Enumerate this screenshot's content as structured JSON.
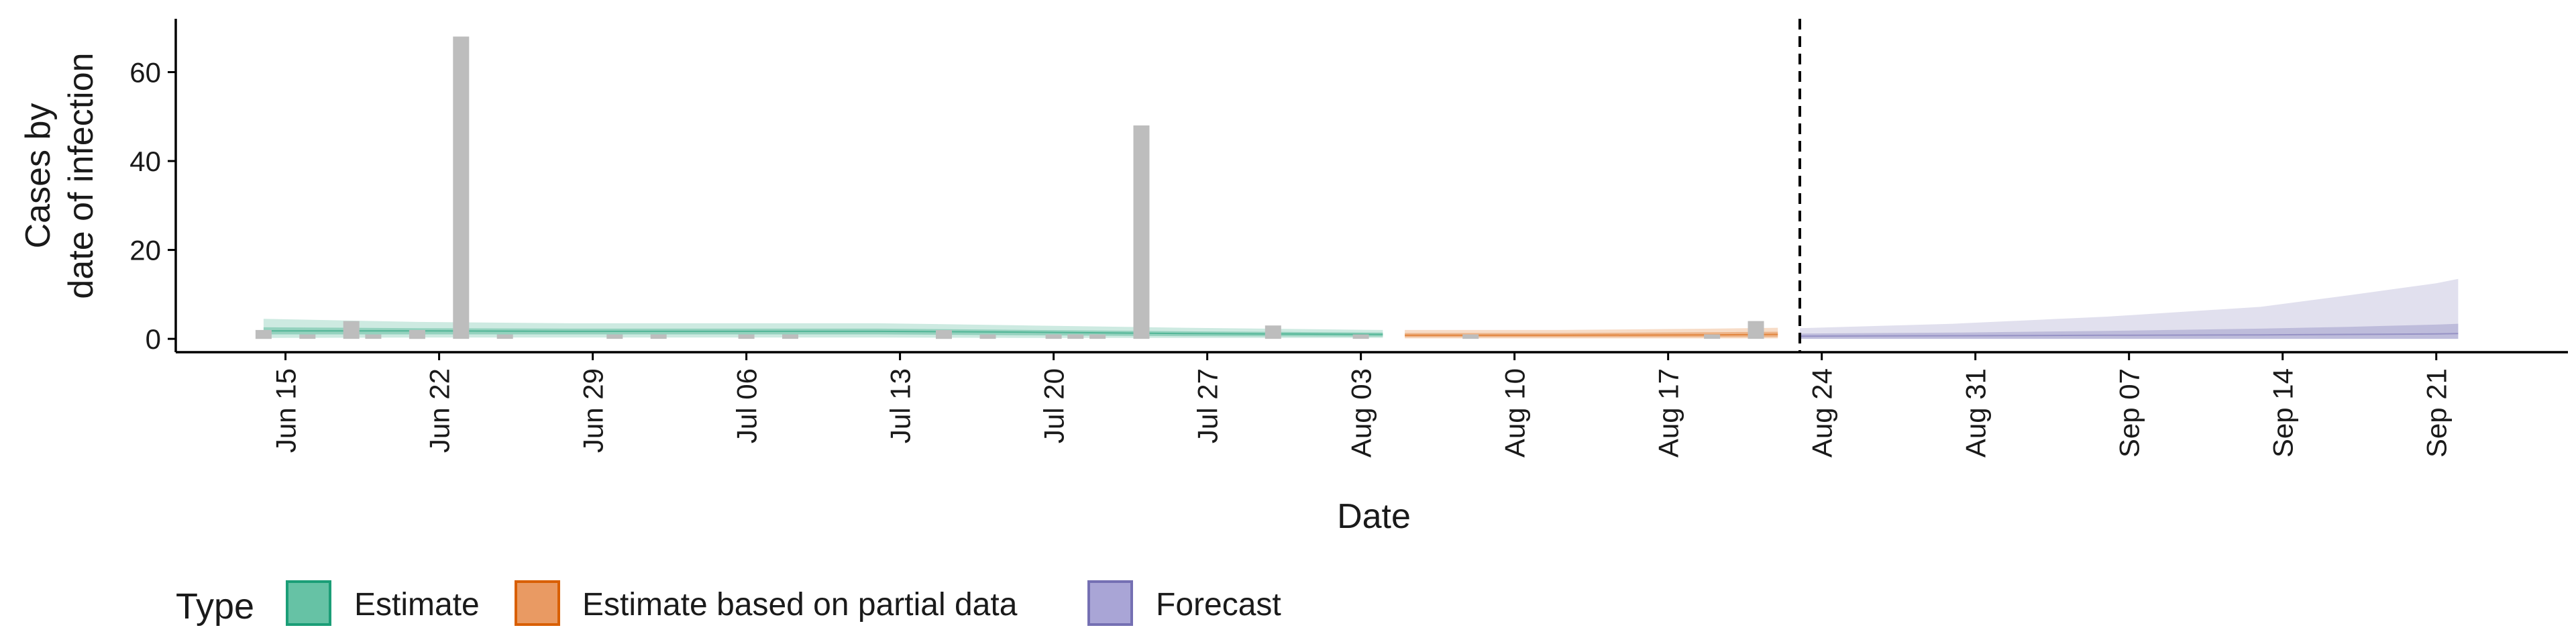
{
  "chart_data": {
    "type": "area",
    "title": "",
    "xlabel": "Date",
    "ylabel_lines": [
      "Cases by",
      "date of infection"
    ],
    "ylim": [
      -3,
      72
    ],
    "yticks": [
      0,
      20,
      40,
      60
    ],
    "xlim": [
      "2020-06-10",
      "2020-09-27"
    ],
    "xticks": [
      "2020-06-15",
      "2020-06-22",
      "2020-06-29",
      "2020-07-06",
      "2020-07-13",
      "2020-07-20",
      "2020-07-27",
      "2020-08-03",
      "2020-08-10",
      "2020-08-17",
      "2020-08-24",
      "2020-08-31",
      "2020-09-07",
      "2020-09-14",
      "2020-09-21"
    ],
    "xtick_labels": [
      "Jun 15",
      "Jun 22",
      "Jun 29",
      "Jul 06",
      "Jul 13",
      "Jul 20",
      "Jul 27",
      "Aug 03",
      "Aug 10",
      "Aug 17",
      "Aug 24",
      "Aug 31",
      "Sep 07",
      "Sep 14",
      "Sep 21"
    ],
    "forecast_start": "2020-08-23",
    "grid": false,
    "observed_cases": [
      {
        "date": "2020-06-14",
        "value": 2
      },
      {
        "date": "2020-06-16",
        "value": 1
      },
      {
        "date": "2020-06-18",
        "value": 4
      },
      {
        "date": "2020-06-19",
        "value": 1
      },
      {
        "date": "2020-06-21",
        "value": 2
      },
      {
        "date": "2020-06-23",
        "value": 68
      },
      {
        "date": "2020-06-25",
        "value": 1
      },
      {
        "date": "2020-06-30",
        "value": 1
      },
      {
        "date": "2020-07-02",
        "value": 1
      },
      {
        "date": "2020-07-06",
        "value": 1
      },
      {
        "date": "2020-07-08",
        "value": 1
      },
      {
        "date": "2020-07-15",
        "value": 2
      },
      {
        "date": "2020-07-17",
        "value": 1
      },
      {
        "date": "2020-07-20",
        "value": 1
      },
      {
        "date": "2020-07-21",
        "value": 1
      },
      {
        "date": "2020-07-22",
        "value": 1
      },
      {
        "date": "2020-07-24",
        "value": 48
      },
      {
        "date": "2020-07-30",
        "value": 3
      },
      {
        "date": "2020-08-03",
        "value": 1
      },
      {
        "date": "2020-08-08",
        "value": 1
      },
      {
        "date": "2020-08-19",
        "value": 1
      },
      {
        "date": "2020-08-21",
        "value": 4
      }
    ],
    "series": [
      {
        "name": "Estimate",
        "color": "#1b9e77",
        "dates": [
          "2020-06-14",
          "2020-06-21",
          "2020-06-28",
          "2020-07-05",
          "2020-07-12",
          "2020-07-19",
          "2020-07-26",
          "2020-08-04"
        ],
        "outer_lower": [
          0.2,
          0.3,
          0.3,
          0.3,
          0.3,
          0.2,
          0.2,
          0.2
        ],
        "outer_upper": [
          4.5,
          3.8,
          3.5,
          3.5,
          3.5,
          3.0,
          2.5,
          2.0
        ],
        "inner_lower": [
          1.0,
          1.0,
          1.0,
          1.0,
          1.0,
          0.8,
          0.6,
          0.5
        ],
        "inner_upper": [
          2.6,
          2.4,
          2.3,
          2.3,
          2.3,
          2.0,
          1.7,
          1.4
        ],
        "median": [
          1.8,
          1.8,
          1.7,
          1.7,
          1.7,
          1.5,
          1.2,
          1.0
        ]
      },
      {
        "name": "Estimate based on partial data",
        "color": "#d95f02",
        "dates": [
          "2020-08-05",
          "2020-08-12",
          "2020-08-19",
          "2020-08-22"
        ],
        "outer_lower": [
          0.1,
          0.1,
          0.1,
          0.1
        ],
        "outer_upper": [
          2.0,
          2.0,
          2.3,
          2.5
        ],
        "inner_lower": [
          0.4,
          0.4,
          0.4,
          0.4
        ],
        "inner_upper": [
          1.3,
          1.3,
          1.5,
          1.6
        ],
        "median": [
          0.8,
          0.8,
          0.9,
          1.0
        ]
      },
      {
        "name": "Forecast",
        "color": "#7570b3",
        "dates": [
          "2020-08-23",
          "2020-08-30",
          "2020-09-06",
          "2020-09-13",
          "2020-09-17",
          "2020-09-21",
          "2020-09-22"
        ],
        "outer_lower": [
          0,
          0,
          0,
          0,
          0,
          0,
          0
        ],
        "outer_upper": [
          2.4,
          3.4,
          5.0,
          7.2,
          9.8,
          12.5,
          13.5
        ],
        "inner_lower": [
          0,
          0,
          0,
          0,
          0,
          0,
          0
        ],
        "inner_upper": [
          1.2,
          1.4,
          1.8,
          2.3,
          2.7,
          3.2,
          3.4
        ],
        "median": [
          0.6,
          0.7,
          0.8,
          0.9,
          1.0,
          1.1,
          1.2
        ]
      }
    ],
    "legend": {
      "position": "bottom-left",
      "title": "Type",
      "items": [
        {
          "label": "Estimate",
          "fill": "#66c2a5",
          "border": "#1b9e77"
        },
        {
          "label": "Estimate based on partial data",
          "fill": "#e99a63",
          "border": "#d95f02"
        },
        {
          "label": "Forecast",
          "fill": "#a9a5d6",
          "border": "#7570b3"
        }
      ]
    },
    "colors": {
      "bars": "#bdbdbd",
      "axis": "#000000",
      "forecast_line": "#000000"
    }
  }
}
